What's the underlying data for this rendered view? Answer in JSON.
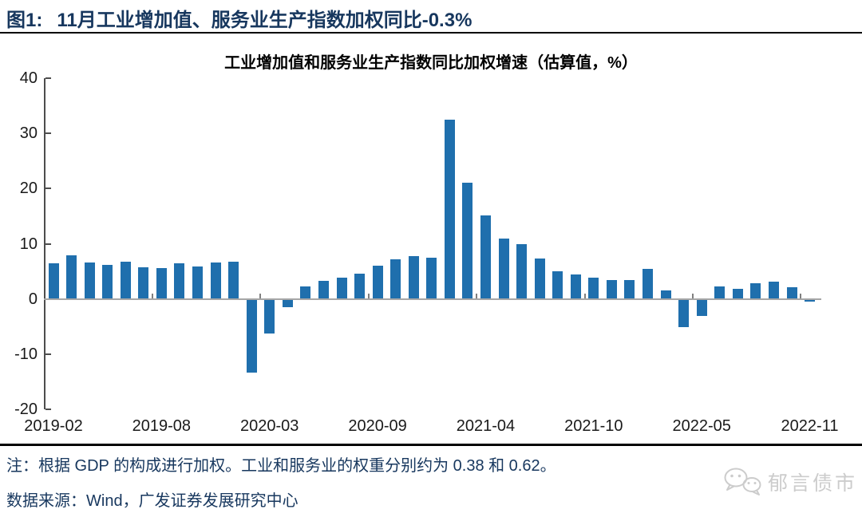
{
  "figure": {
    "label": "图1:",
    "title": "11月工业增加值、服务业生产指数加权同比-0.3%"
  },
  "chart_data": {
    "type": "bar",
    "title": "工业增加值和服务业生产指数同比加权增速（估算值，%）",
    "categories": [
      "2019-02",
      "2019-03",
      "2019-04",
      "2019-05",
      "2019-06",
      "2019-07",
      "2019-08",
      "2019-09",
      "2019-10",
      "2019-11",
      "2019-12",
      "2020-02",
      "2020-03",
      "2020-04",
      "2020-05",
      "2020-06",
      "2020-07",
      "2020-08",
      "2020-09",
      "2020-10",
      "2020-11",
      "2020-12",
      "2021-02",
      "2021-03",
      "2021-04",
      "2021-05",
      "2021-06",
      "2021-07",
      "2021-08",
      "2021-09",
      "2021-10",
      "2021-11",
      "2021-12",
      "2022-02",
      "2022-03",
      "2022-04",
      "2022-05",
      "2022-06",
      "2022-07",
      "2022-08",
      "2022-09",
      "2022-10",
      "2022-11"
    ],
    "values": [
      6.5,
      7.9,
      6.6,
      6.2,
      6.8,
      5.7,
      5.6,
      6.4,
      5.9,
      6.6,
      6.8,
      -13.2,
      -6.1,
      -1.3,
      2.3,
      3.3,
      3.9,
      4.6,
      6.0,
      7.2,
      7.7,
      7.5,
      32.5,
      21.0,
      15.1,
      11.0,
      9.9,
      7.3,
      5.0,
      4.4,
      3.8,
      3.4,
      3.5,
      5.5,
      1.5,
      -4.9,
      -2.9,
      2.3,
      1.9,
      2.9,
      3.2,
      2.1,
      -0.3
    ],
    "xlabel": "",
    "ylabel": "",
    "ylim": [
      -20,
      40
    ],
    "yticks": [
      40,
      30,
      20,
      10,
      0,
      -10,
      -20
    ],
    "xtick_labels": [
      "2019-02",
      "2019-08",
      "2020-03",
      "2020-09",
      "2021-04",
      "2021-10",
      "2022-05",
      "2022-11"
    ],
    "xtick_indices": [
      0,
      6,
      12,
      18,
      24,
      30,
      36,
      42
    ],
    "grid": "off",
    "legend": "none",
    "bar_color": "#1F6FAD"
  },
  "footnote": {
    "note": "注：根据 GDP 的构成进行加权。工业和服务业的权重分别约为 0.38 和 0.62。",
    "source": "数据来源：Wind，广发证券发展研究中心"
  },
  "watermark": {
    "label": "郁言债市",
    "icon": "wechat-icon"
  },
  "colors": {
    "heading_navy": "#17375e",
    "bar_blue": "#1F6FAD",
    "zero_line_gray": "#a6a6a6",
    "axis_gray": "#4d4d4d",
    "watermark_gray": "#cccccc"
  }
}
